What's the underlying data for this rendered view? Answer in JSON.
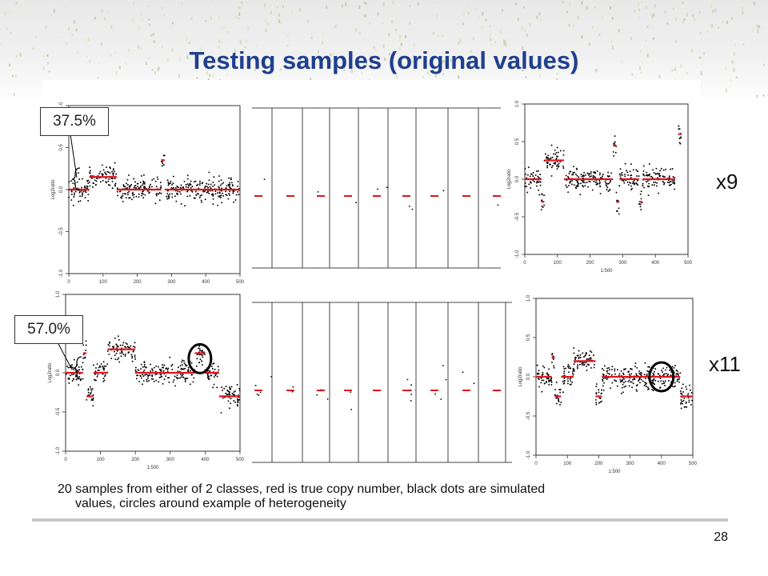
{
  "slide": {
    "title": "Testing samples (original values)",
    "callout_1": "37.5%",
    "callout_2": "57.0%",
    "multiplier_1": "x9",
    "multiplier_2": "x11",
    "caption_line_1": "20 samples from either of 2 classes, red is true copy number, black dots are simulated",
    "caption_line_2": "values, circles around example of heterogeneity",
    "page_number": "28"
  },
  "colors": {
    "title": "#1f3f8f",
    "true_copy_number": "#e0141e",
    "simulated_values": "#000000"
  },
  "chart_data": [
    {
      "type": "scatter",
      "title": "",
      "xlabel": "1:500",
      "ylabel": "Log2ratio",
      "xlim": [
        0,
        500
      ],
      "ylim": [
        -1.0,
        1.0
      ],
      "xticks": [
        0,
        100,
        200,
        300,
        400,
        500
      ],
      "yticks": [
        -1.0,
        -0.5,
        0.0,
        0.5,
        1.0
      ],
      "segments": [
        {
          "x0": 0,
          "x1": 60,
          "y": 0.0
        },
        {
          "x0": 60,
          "x1": 140,
          "y": 0.15
        },
        {
          "x0": 140,
          "x1": 270,
          "y": 0.0
        },
        {
          "x0": 270,
          "x1": 280,
          "y": 0.35
        },
        {
          "x0": 280,
          "x1": 500,
          "y": 0.0
        }
      ]
    },
    {
      "type": "scatter",
      "title": "",
      "xlabel": "1:500",
      "ylabel": "Log2ratio",
      "xlim": [
        0,
        500
      ],
      "ylim": [
        -1.0,
        1.0
      ],
      "xticks": [
        0,
        100,
        200,
        300,
        400,
        500
      ],
      "yticks": [
        -1.0,
        -0.5,
        0.0,
        0.5,
        1.0
      ],
      "segments": [
        {
          "x0": 0,
          "x1": 50,
          "y": 0.0
        },
        {
          "x0": 50,
          "x1": 60,
          "y": -0.3
        },
        {
          "x0": 60,
          "x1": 120,
          "y": 0.25
        },
        {
          "x0": 120,
          "x1": 270,
          "y": 0.0
        },
        {
          "x0": 270,
          "x1": 280,
          "y": 0.45
        },
        {
          "x0": 280,
          "x1": 290,
          "y": -0.3
        },
        {
          "x0": 290,
          "x1": 350,
          "y": 0.0
        },
        {
          "x0": 350,
          "x1": 360,
          "y": -0.3
        },
        {
          "x0": 360,
          "x1": 460,
          "y": 0.0
        },
        {
          "x0": 470,
          "x1": 480,
          "y": 0.6
        }
      ]
    },
    {
      "type": "scatter",
      "title": "",
      "xlabel": "1:500",
      "ylabel": "Log2ratio",
      "xlim": [
        0,
        500
      ],
      "ylim": [
        -1.0,
        1.0
      ],
      "xticks": [
        0,
        100,
        200,
        300,
        400,
        500
      ],
      "yticks": [
        -1.0,
        -0.5,
        0.0,
        0.5,
        1.0
      ],
      "segments": [
        {
          "x0": 0,
          "x1": 50,
          "y": 0.0
        },
        {
          "x0": 50,
          "x1": 60,
          "y": 0.25
        },
        {
          "x0": 60,
          "x1": 80,
          "y": -0.3
        },
        {
          "x0": 80,
          "x1": 120,
          "y": 0.0
        },
        {
          "x0": 120,
          "x1": 200,
          "y": 0.3
        },
        {
          "x0": 200,
          "x1": 370,
          "y": 0.0
        },
        {
          "x0": 370,
          "x1": 400,
          "y": 0.25
        },
        {
          "x0": 400,
          "x1": 440,
          "y": 0.0
        },
        {
          "x0": 440,
          "x1": 500,
          "y": -0.3
        }
      ]
    },
    {
      "type": "scatter",
      "title": "",
      "xlabel": "1:500",
      "ylabel": "Log2ratio",
      "xlim": [
        0,
        500
      ],
      "ylim": [
        -1.0,
        1.0
      ],
      "xticks": [
        0,
        100,
        200,
        300,
        400,
        500
      ],
      "yticks": [
        -1.0,
        -0.5,
        0.0,
        0.5,
        1.0
      ],
      "segments": [
        {
          "x0": 0,
          "x1": 50,
          "y": 0.0
        },
        {
          "x0": 50,
          "x1": 60,
          "y": 0.25
        },
        {
          "x0": 60,
          "x1": 80,
          "y": -0.25
        },
        {
          "x0": 80,
          "x1": 120,
          "y": 0.0
        },
        {
          "x0": 120,
          "x1": 190,
          "y": 0.2
        },
        {
          "x0": 190,
          "x1": 210,
          "y": -0.25
        },
        {
          "x0": 210,
          "x1": 460,
          "y": 0.0
        },
        {
          "x0": 460,
          "x1": 500,
          "y": -0.25
        }
      ]
    }
  ]
}
